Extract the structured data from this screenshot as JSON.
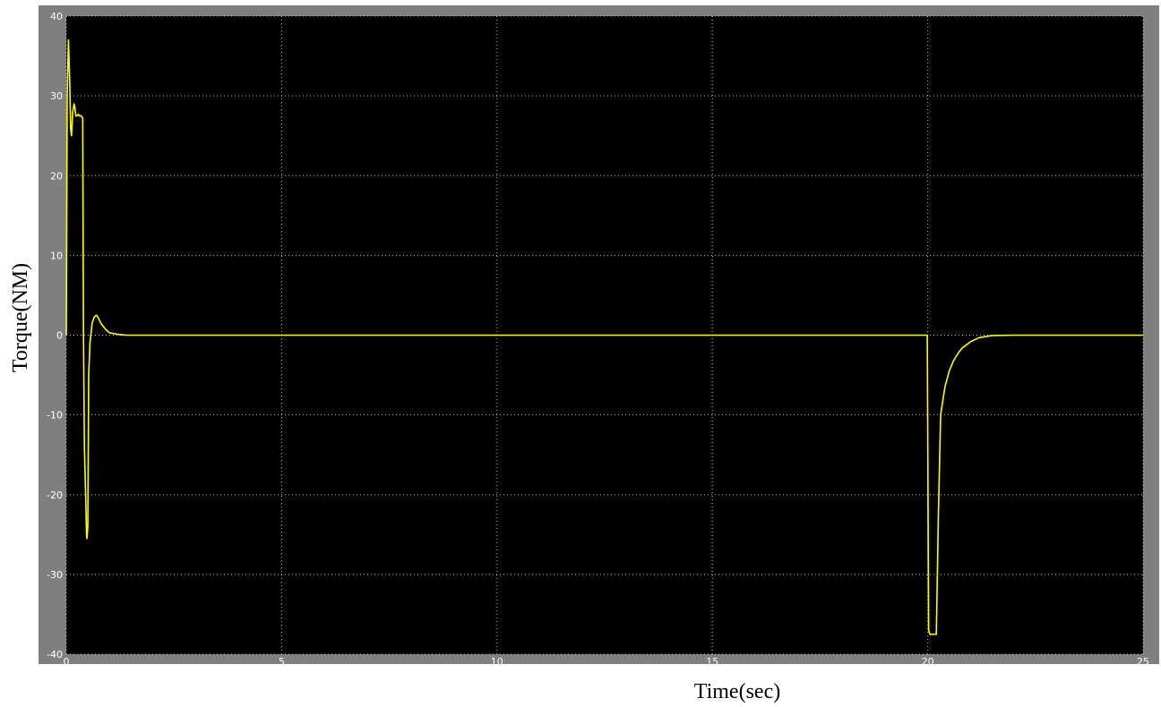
{
  "chart_data": {
    "type": "line",
    "title": "",
    "xlabel": "Time(sec)",
    "ylabel": "Torque(NM)",
    "xlim": [
      0,
      25
    ],
    "ylim": [
      -40,
      40
    ],
    "xticks": [
      0,
      5,
      10,
      15,
      20,
      25
    ],
    "yticks": [
      -40,
      -30,
      -20,
      -10,
      0,
      10,
      20,
      30,
      40
    ],
    "grid": true,
    "legend": "none",
    "colors": {
      "plot_background": "#000000",
      "frame": "#7f7f7f",
      "series": "#ffff00",
      "grid": "#bdbdbd",
      "tick_labels": "#ffffff"
    },
    "series": [
      {
        "x": [
          0,
          0.02,
          0.05,
          0.08,
          0.1,
          0.12,
          0.15,
          0.18,
          0.2,
          0.22,
          0.25,
          0.28,
          0.3,
          0.35,
          0.38,
          0.4,
          0.42,
          0.45,
          0.47,
          0.48,
          0.5,
          0.52,
          0.55,
          0.6,
          0.65,
          0.7,
          0.75,
          0.8,
          0.9,
          1.0,
          1.2,
          1.4,
          1.6,
          1.8,
          2.0,
          5,
          10,
          15,
          19.5,
          19.99,
          20.02,
          20.05,
          20.1,
          20.15,
          20.2,
          20.25,
          20.3,
          20.4,
          20.5,
          20.6,
          20.7,
          20.8,
          21.0,
          21.2,
          21.5,
          22.0,
          23,
          24,
          25
        ],
        "y": [
          0,
          30,
          37,
          32,
          26,
          25,
          28,
          29,
          28.5,
          27.5,
          27.5,
          27.7,
          27.5,
          27.5,
          27.2,
          0,
          -14,
          -20,
          -25,
          -25.5,
          -24,
          -5,
          -1,
          1.5,
          2.3,
          2.5,
          2.1,
          1.5,
          0.8,
          0.3,
          0.1,
          0,
          0,
          0,
          0,
          0,
          0,
          0,
          0,
          0,
          -37,
          -37.5,
          -37.5,
          -37.5,
          -37.5,
          -22,
          -10,
          -6.5,
          -4.5,
          -3.2,
          -2.3,
          -1.6,
          -0.8,
          -0.3,
          -0.05,
          0,
          0,
          0,
          0
        ]
      }
    ]
  }
}
